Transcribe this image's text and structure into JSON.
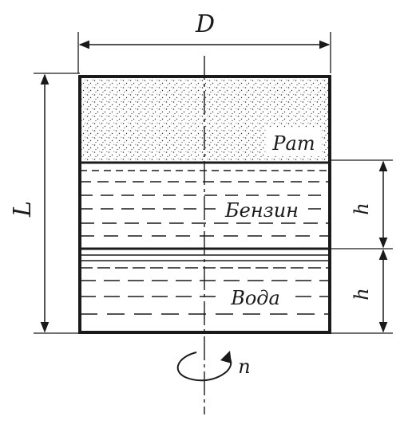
{
  "labels": {
    "diameter": "D",
    "length": "L",
    "pressure": "Pат",
    "gasoline": "Бензин",
    "water": "Вода",
    "layer_height_upper": "h",
    "layer_height_lower": "h",
    "rotation": "n"
  },
  "colors": {
    "ink": "#1a1a1a",
    "background": "#ffffff"
  }
}
